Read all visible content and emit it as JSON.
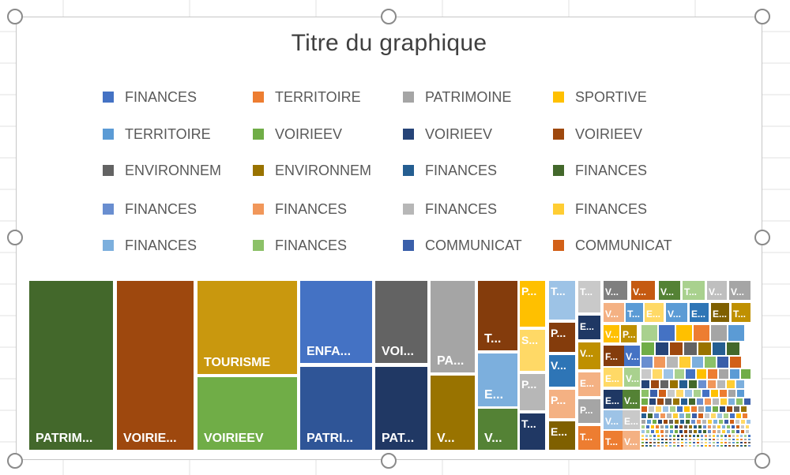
{
  "chart_data": {
    "type": "treemap",
    "title": "Titre du graphique",
    "legend": {
      "position": "top",
      "entries": [
        {
          "name": "FINANCES",
          "color": "#4472C4"
        },
        {
          "name": "TERRITOIRE",
          "color": "#ED7D31"
        },
        {
          "name": "PATRIMOINE",
          "color": "#A5A5A5"
        },
        {
          "name": "SPORTIVE",
          "color": "#FFC000"
        },
        {
          "name": "TERRITOIRE",
          "color": "#5B9BD5"
        },
        {
          "name": "VOIRIEEV",
          "color": "#70AD47"
        },
        {
          "name": "VOIRIEEV",
          "color": "#264478"
        },
        {
          "name": "VOIRIEEV",
          "color": "#9E480E"
        },
        {
          "name": "ENVIRONNEM",
          "color": "#636363"
        },
        {
          "name": "ENVIRONNEM",
          "color": "#997300"
        },
        {
          "name": "FINANCES",
          "color": "#255E91"
        },
        {
          "name": "FINANCES",
          "color": "#43682B"
        },
        {
          "name": "FINANCES",
          "color": "#698ED0"
        },
        {
          "name": "FINANCES",
          "color": "#F1975A"
        },
        {
          "name": "FINANCES",
          "color": "#B7B7B7"
        },
        {
          "name": "FINANCES",
          "color": "#FFCD33"
        },
        {
          "name": "FINANCES",
          "color": "#7CAFDD"
        },
        {
          "name": "FINANCES",
          "color": "#8CC168"
        },
        {
          "name": "COMMUNICAT",
          "color": "#3A5FAA"
        },
        {
          "name": "COMMUNICAT",
          "color": "#D26018"
        }
      ]
    },
    "labeled_tiles": [
      {
        "label": "PATRIM...",
        "color": "#43682B",
        "value": 25
      },
      {
        "label": "VOIRIE...",
        "color": "#9E480E",
        "value": 23
      },
      {
        "label": "TOURISME",
        "color": "#C9980E",
        "value": 11.8
      },
      {
        "label": "VOIRIEEV",
        "color": "#70AD47",
        "value": 11.1
      },
      {
        "label": "ENFA...",
        "color": "#4472C4",
        "value": 10.1
      },
      {
        "label": "PATRI...",
        "color": "#2F5597",
        "value": 10.1
      },
      {
        "label": "VOI...",
        "color": "#636363",
        "value": 7.5
      },
      {
        "label": "PAT...",
        "color": "#203864",
        "value": 7.5
      },
      {
        "label": "PA...",
        "color": "#A5A5A5",
        "value": 7.7
      },
      {
        "label": "V...",
        "color": "#997300",
        "value": 5.7
      },
      {
        "label": "T...",
        "color": "#843C0C",
        "value": 5.5
      },
      {
        "label": "E...",
        "color": "#7CAFDD",
        "value": 3.6
      },
      {
        "label": "V...",
        "color": "#548235",
        "value": 2.8
      },
      {
        "label": "P...",
        "color": "#FFC000",
        "value": 2.1
      },
      {
        "label": "S...",
        "color": "#FFD966",
        "value": 1.7
      },
      {
        "label": "P...",
        "color": "#B7B7B7",
        "value": 1.8
      },
      {
        "label": "T...",
        "color": "#203864",
        "value": 1.4
      },
      {
        "label": "T...",
        "color": "#9DC3E6",
        "value": 1.9
      },
      {
        "label": "P...",
        "color": "#843C0C",
        "value": 1.4
      },
      {
        "label": "V...",
        "color": "#2E75B6",
        "value": 1.4
      },
      {
        "label": "P...",
        "color": "#F4B183",
        "value": 1.4
      },
      {
        "label": "E...",
        "color": "#7F6000",
        "value": 1.2
      },
      {
        "label": "T...",
        "color": "#C9C9C9",
        "value": 0.9
      },
      {
        "label": "E...",
        "color": "#1F3864",
        "value": 0.6
      },
      {
        "label": "V...",
        "color": "#BF9000",
        "value": 0.6
      },
      {
        "label": "E...",
        "color": "#F4B183",
        "value": 0.5
      },
      {
        "label": "P...",
        "color": "#A5A5A5",
        "value": 0.5
      },
      {
        "label": "T...",
        "color": "#ED7D31",
        "value": 0.4
      },
      {
        "label": "V...",
        "color": "#7F7F7F",
        "value": 0.3
      },
      {
        "label": "V...",
        "color": "#C55A11",
        "value": 0.3
      },
      {
        "label": "V...",
        "color": "#548235",
        "value": 0.3
      },
      {
        "label": "T...",
        "color": "#A9D18E",
        "value": 0.3
      },
      {
        "label": "V...",
        "color": "#BFBFBF",
        "value": 0.3
      },
      {
        "label": "V...",
        "color": "#A5A5A5",
        "value": 0.3
      },
      {
        "label": "V...",
        "color": "#F4B183",
        "value": 0.2
      },
      {
        "label": "T...",
        "color": "#5B9BD5",
        "value": 0.2
      },
      {
        "label": "E...",
        "color": "#FFD966",
        "value": 0.2
      },
      {
        "label": "V...",
        "color": "#5B9BD5",
        "value": 0.2
      },
      {
        "label": "E...",
        "color": "#2E75B6",
        "value": 0.2
      },
      {
        "label": "E...",
        "color": "#7F6000",
        "value": 0.2
      },
      {
        "label": "T...",
        "color": "#BF9000",
        "value": 0.2
      },
      {
        "label": "V...",
        "color": "#FFC000",
        "value": 0.2
      },
      {
        "label": "P...",
        "color": "#BF9000",
        "value": 0.2
      },
      {
        "label": "F...",
        "color": "#843C0C",
        "value": 0.2
      },
      {
        "label": "V...",
        "color": "#4472C4",
        "value": 0.2
      },
      {
        "label": "E...",
        "color": "#FFD966",
        "value": 0.2
      },
      {
        "label": "V...",
        "color": "#A9D18E",
        "value": 0.2
      },
      {
        "label": "E...",
        "color": "#1F3864",
        "value": 0.2
      },
      {
        "label": "V...",
        "color": "#548235",
        "value": 0.2
      },
      {
        "label": "V...",
        "color": "#9DC3E6",
        "value": 0.2
      },
      {
        "label": "E...",
        "color": "#C9C9C9",
        "value": 0.2
      },
      {
        "label": "T...",
        "color": "#ED7D31",
        "value": 0.2
      },
      {
        "label": "V...",
        "color": "#F4B183",
        "value": 0.2
      }
    ],
    "small_tile_palette": [
      "#A9D18E",
      "#4472C4",
      "#FFC000",
      "#ED7D31",
      "#A5A5A5",
      "#5B9BD5",
      "#70AD47",
      "#264478",
      "#9E480E",
      "#636363",
      "#997300",
      "#255E91",
      "#43682B",
      "#698ED0",
      "#F1975A",
      "#B7B7B7",
      "#FFCD33",
      "#7CAFDD",
      "#8CC168",
      "#3A5FAA",
      "#D26018",
      "#C9C9C9",
      "#FFD966",
      "#9DC3E6"
    ]
  }
}
